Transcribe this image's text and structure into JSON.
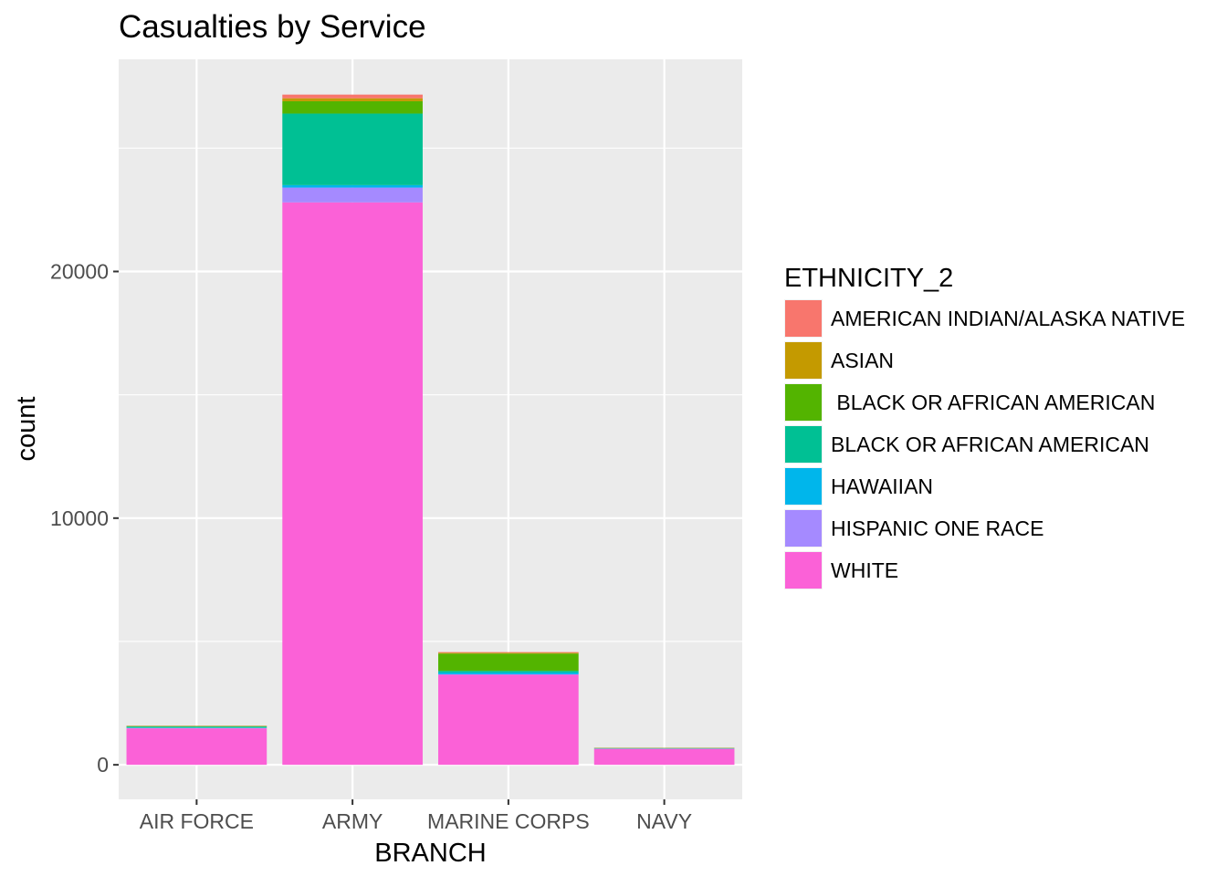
{
  "chart_data": {
    "type": "bar",
    "stacked": true,
    "title": "Casualties by Service",
    "xlabel": "BRANCH",
    "ylabel": "count",
    "categories": [
      "AIR FORCE",
      "ARMY",
      "MARINE CORPS",
      "NAVY"
    ],
    "ylim": [
      -1400,
      28600
    ],
    "yticks": [
      0,
      10000,
      20000
    ],
    "ytick_labels": [
      "0",
      "10000",
      "20000"
    ],
    "grid": true,
    "legend": {
      "title": "ETHNICITY_2",
      "position": "right"
    },
    "series": [
      {
        "name": "AMERICAN INDIAN/ALASKA NATIVE",
        "color": "#F8766D",
        "values": [
          5,
          150,
          30,
          3
        ]
      },
      {
        "name": "ASIAN",
        "color": "#C49A00",
        "values": [
          10,
          120,
          30,
          5
        ]
      },
      {
        "name": " BLACK OR AFRICAN AMERICAN",
        "color": "#53B400",
        "values": [
          20,
          500,
          700,
          10
        ]
      },
      {
        "name": "BLACK OR AFRICAN AMERICAN",
        "color": "#00C094",
        "values": [
          40,
          2900,
          70,
          15
        ]
      },
      {
        "name": "HAWAIIAN",
        "color": "#00B6EB",
        "values": [
          20,
          100,
          70,
          5
        ]
      },
      {
        "name": "HISPANIC ONE RACE",
        "color": "#A58AFF",
        "values": [
          10,
          600,
          20,
          5
        ]
      },
      {
        "name": "WHITE",
        "color": "#FB61D7",
        "values": [
          1480,
          22800,
          3650,
          650
        ]
      }
    ]
  }
}
